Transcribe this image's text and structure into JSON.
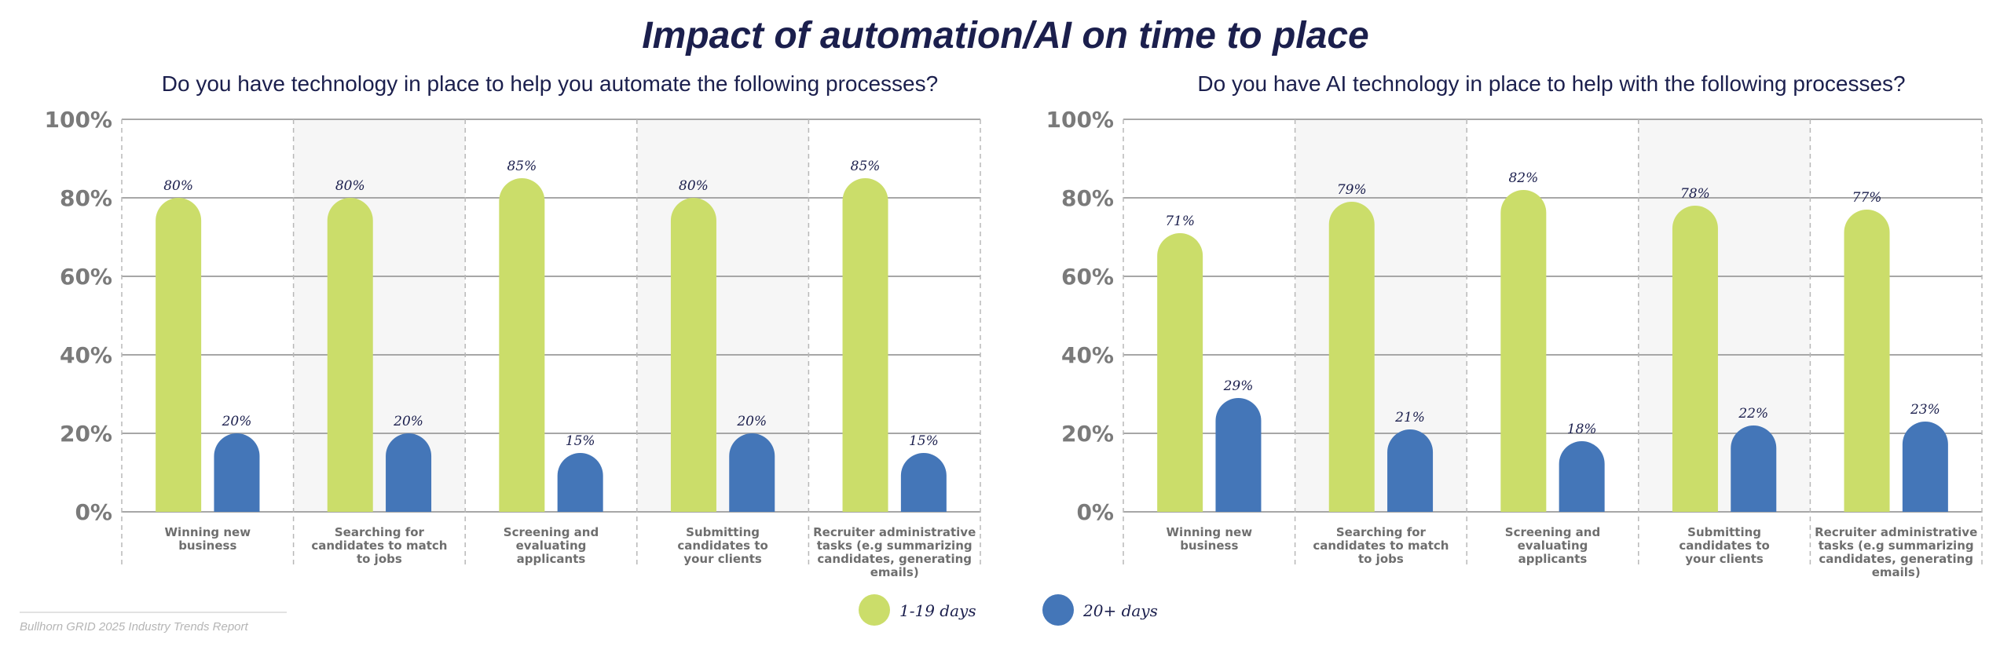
{
  "title": "Impact of automation/AI on time to place",
  "source": "Bullhorn GRID 2025 Industry Trends Report",
  "colors": {
    "series1": "#cbdd6a",
    "series2": "#4476b8",
    "grid": "#a7a7a7",
    "shade": "#f6f6f6",
    "text": "#1b1f4d"
  },
  "chart_data": [
    {
      "type": "bar",
      "title": "Do you have technology in place to help you automate the following processes?",
      "categories": [
        "Winning new business",
        "Searching for candidates to match to jobs",
        "Screening and evaluating applicants",
        "Submitting candidates to your clients",
        "Recruiter administrative tasks (e.g summarizing candidates, generating emails)"
      ],
      "series": [
        {
          "name": "1-19 days",
          "values": [
            80,
            80,
            85,
            80,
            85
          ]
        },
        {
          "name": "20+ days",
          "values": [
            20,
            20,
            15,
            20,
            15
          ]
        }
      ],
      "ylim": [
        0,
        100
      ],
      "yticks": [
        "0%",
        "20%",
        "40%",
        "60%",
        "80%",
        "100%"
      ],
      "grid": true
    },
    {
      "type": "bar",
      "title": "Do you have AI technology in place to help with the following processes?",
      "categories": [
        "Winning new business",
        "Searching for candidates to match to jobs",
        "Screening and evaluating applicants",
        "Submitting candidates to your clients",
        "Recruiter administrative tasks (e.g summarizing candidates, generating emails)"
      ],
      "series": [
        {
          "name": "1-19 days",
          "values": [
            71,
            79,
            82,
            78,
            77
          ]
        },
        {
          "name": "20+ days",
          "values": [
            29,
            21,
            18,
            22,
            23
          ]
        }
      ],
      "ylim": [
        0,
        100
      ],
      "yticks": [
        "0%",
        "20%",
        "40%",
        "60%",
        "80%",
        "100%"
      ],
      "grid": true
    }
  ],
  "legend": [
    {
      "label": "1-19 days",
      "color": "#cbdd6a"
    },
    {
      "label": "20+ days",
      "color": "#4476b8"
    }
  ]
}
